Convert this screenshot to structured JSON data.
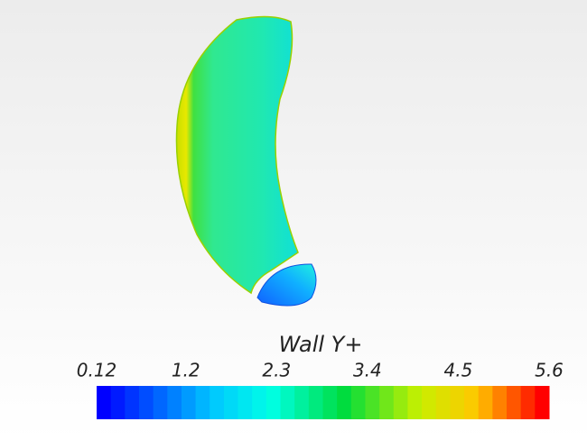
{
  "colorbar": {
    "title": "Wall Y+",
    "lim": [
      0.12,
      5.6
    ],
    "ticks": [
      0.12,
      1.2,
      2.3,
      3.4,
      4.5,
      5.6
    ]
  }
}
